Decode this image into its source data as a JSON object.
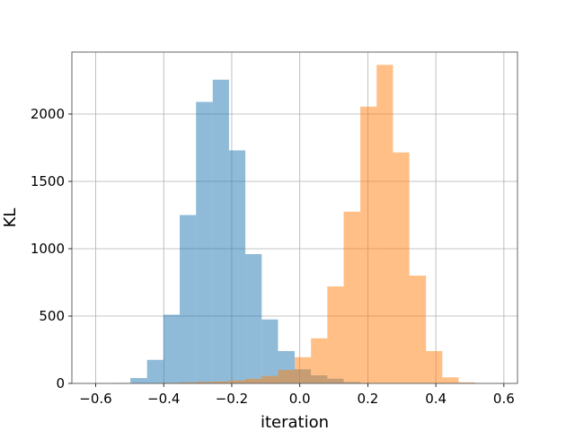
{
  "chart_data": {
    "type": "bar",
    "histogram": true,
    "xlabel": "iteration",
    "ylabel": "KL",
    "xlim": [
      -0.67,
      0.64
    ],
    "ylim": [
      0,
      2460
    ],
    "xticks": [
      -0.6,
      -0.4,
      -0.2,
      0.0,
      0.2,
      0.4,
      0.6
    ],
    "xtick_labels": [
      "−0.6",
      "−0.4",
      "−0.2",
      "0.0",
      "0.2",
      "0.4",
      "0.6"
    ],
    "yticks": [
      0,
      500,
      1000,
      1500,
      2000
    ],
    "ytick_labels": [
      "0",
      "500",
      "1000",
      "1500",
      "2000"
    ],
    "grid": true,
    "legend": null,
    "series": [
      {
        "color": "#1f77b4",
        "alpha": 0.5,
        "bins": [
          {
            "x0": -0.594,
            "x1": -0.546,
            "count": 2
          },
          {
            "x0": -0.546,
            "x1": -0.498,
            "count": 4
          },
          {
            "x0": -0.498,
            "x1": -0.449,
            "count": 40
          },
          {
            "x0": -0.449,
            "x1": -0.401,
            "count": 175
          },
          {
            "x0": -0.401,
            "x1": -0.353,
            "count": 510
          },
          {
            "x0": -0.353,
            "x1": -0.305,
            "count": 1250
          },
          {
            "x0": -0.305,
            "x1": -0.256,
            "count": 2090
          },
          {
            "x0": -0.256,
            "x1": -0.208,
            "count": 2255
          },
          {
            "x0": -0.208,
            "x1": -0.16,
            "count": 1730
          },
          {
            "x0": -0.16,
            "x1": -0.112,
            "count": 960
          },
          {
            "x0": -0.112,
            "x1": -0.064,
            "count": 475
          },
          {
            "x0": -0.064,
            "x1": -0.015,
            "count": 240
          },
          {
            "x0": -0.015,
            "x1": 0.033,
            "count": 105
          },
          {
            "x0": 0.033,
            "x1": 0.081,
            "count": 60
          },
          {
            "x0": 0.081,
            "x1": 0.129,
            "count": 35
          },
          {
            "x0": 0.129,
            "x1": 0.178,
            "count": 10
          },
          {
            "x0": 0.178,
            "x1": 0.226,
            "count": 3
          }
        ]
      },
      {
        "color": "#ff7f0e",
        "alpha": 0.5,
        "bins": [
          {
            "x0": -0.498,
            "x1": -0.449,
            "count": 1
          },
          {
            "x0": -0.449,
            "x1": -0.401,
            "count": 2
          },
          {
            "x0": -0.401,
            "x1": -0.353,
            "count": 5
          },
          {
            "x0": -0.353,
            "x1": -0.305,
            "count": 8
          },
          {
            "x0": -0.305,
            "x1": -0.256,
            "count": 12
          },
          {
            "x0": -0.256,
            "x1": -0.208,
            "count": 15
          },
          {
            "x0": -0.208,
            "x1": -0.16,
            "count": 22
          },
          {
            "x0": -0.16,
            "x1": -0.112,
            "count": 35
          },
          {
            "x0": -0.112,
            "x1": -0.064,
            "count": 55
          },
          {
            "x0": -0.064,
            "x1": -0.015,
            "count": 100
          },
          {
            "x0": -0.015,
            "x1": 0.033,
            "count": 195
          },
          {
            "x0": 0.033,
            "x1": 0.081,
            "count": 335
          },
          {
            "x0": 0.081,
            "x1": 0.129,
            "count": 720
          },
          {
            "x0": 0.129,
            "x1": 0.178,
            "count": 1275
          },
          {
            "x0": 0.178,
            "x1": 0.226,
            "count": 2055
          },
          {
            "x0": 0.226,
            "x1": 0.274,
            "count": 2365
          },
          {
            "x0": 0.274,
            "x1": 0.322,
            "count": 1715
          },
          {
            "x0": 0.322,
            "x1": 0.371,
            "count": 800
          },
          {
            "x0": 0.371,
            "x1": 0.419,
            "count": 240
          },
          {
            "x0": 0.419,
            "x1": 0.467,
            "count": 45
          },
          {
            "x0": 0.467,
            "x1": 0.515,
            "count": 8
          }
        ]
      }
    ]
  }
}
